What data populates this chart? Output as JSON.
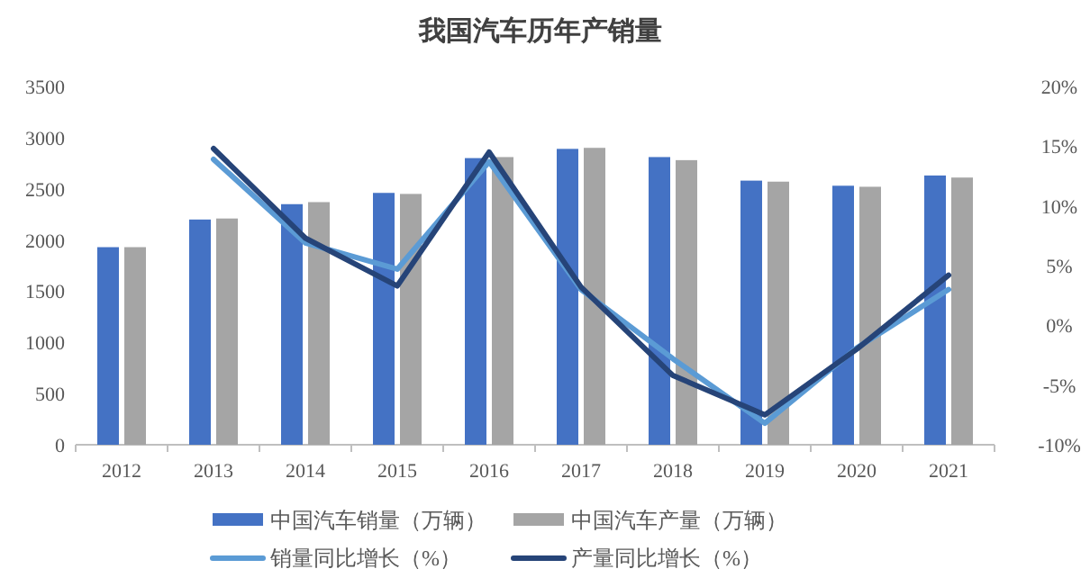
{
  "chart_data": {
    "type": "bar",
    "title": "我国汽车历年产销量",
    "categories": [
      "2012",
      "2013",
      "2014",
      "2015",
      "2016",
      "2017",
      "2018",
      "2019",
      "2020",
      "2021"
    ],
    "series": [
      {
        "name": "中国汽车销量（万辆）",
        "color": "#4472c4",
        "values": [
          1930,
          2200,
          2350,
          2460,
          2800,
          2890,
          2810,
          2580,
          2530,
          2630
        ]
      },
      {
        "name": "中国汽车产量（万辆）",
        "color": "#a5a5a5",
        "values": [
          1930,
          2210,
          2370,
          2450,
          2810,
          2900,
          2780,
          2570,
          2520,
          2610
        ]
      },
      {
        "name": "销量同比增长（%）",
        "type": "line",
        "axis": "y2",
        "color": "#5b9bd5",
        "values": [
          null,
          13.9,
          6.9,
          4.7,
          13.7,
          3.0,
          -2.8,
          -8.2,
          -1.9,
          3.0
        ]
      },
      {
        "name": "产量同比增长（%）",
        "type": "line",
        "axis": "y2",
        "color": "#264478",
        "values": [
          null,
          14.8,
          7.3,
          3.3,
          14.5,
          3.2,
          -4.2,
          -7.5,
          -2.0,
          4.2
        ]
      }
    ],
    "ylim": [
      0,
      3500
    ],
    "yticks": [
      0,
      500,
      1000,
      1500,
      2000,
      2500,
      3000,
      3500
    ],
    "y2lim": [
      -10,
      20
    ],
    "y2ticks": [
      {
        "value": -10,
        "label": "-10%"
      },
      {
        "value": -5,
        "label": "-5%"
      },
      {
        "value": 0,
        "label": "0%"
      },
      {
        "value": 5,
        "label": "5%"
      },
      {
        "value": 10,
        "label": "10%"
      },
      {
        "value": 15,
        "label": "15%"
      },
      {
        "value": 20,
        "label": "20%"
      }
    ],
    "grid": false,
    "legend": "bottom",
    "marker": "none",
    "line_style": "solid"
  }
}
